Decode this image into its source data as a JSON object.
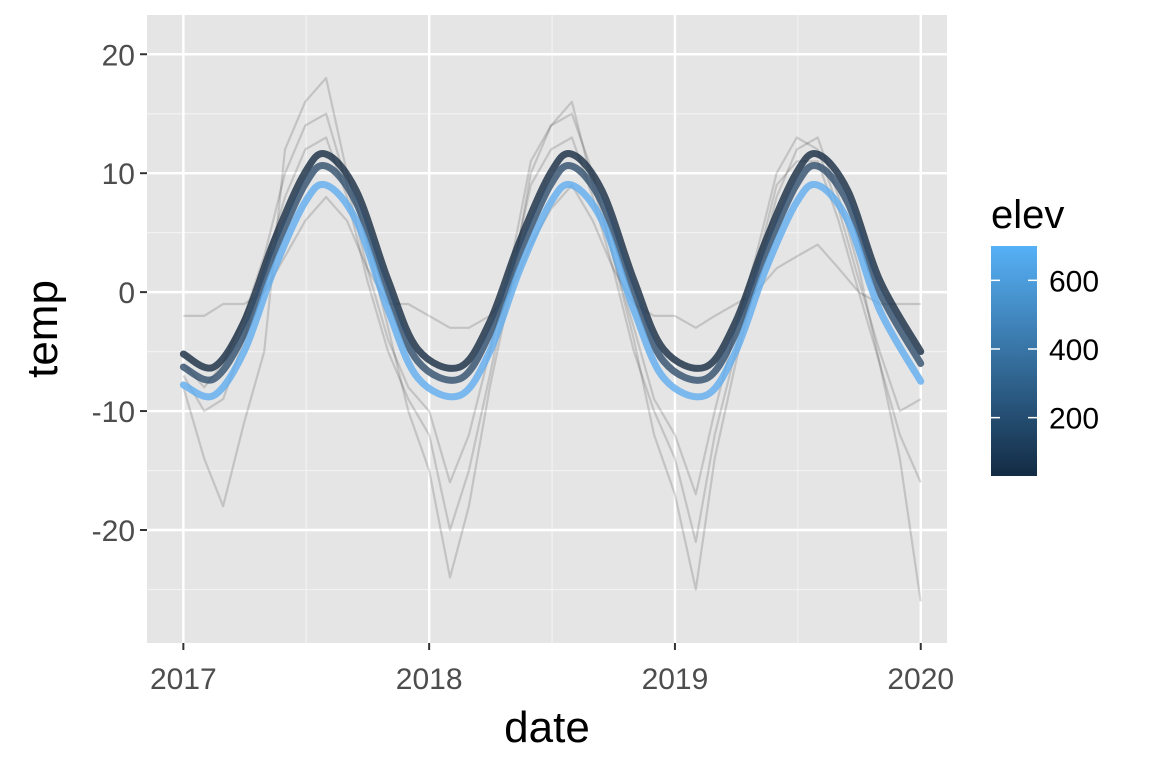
{
  "chart_data": {
    "type": "line",
    "xlabel": "date",
    "ylabel": "temp",
    "x_range": [
      "2016-11-08",
      "2020-02-09"
    ],
    "y_range": [
      -29.5,
      23.3
    ],
    "x_ticks": [
      {
        "date": "2017-01-01",
        "label": "2017"
      },
      {
        "date": "2018-01-01",
        "label": "2018"
      },
      {
        "date": "2019-01-01",
        "label": "2019"
      },
      {
        "date": "2020-01-01",
        "label": "2020"
      }
    ],
    "y_ticks": [
      {
        "value": 20,
        "label": "20"
      },
      {
        "value": 10,
        "label": "10"
      },
      {
        "value": 0,
        "label": "0"
      },
      {
        "value": -10,
        "label": "-10"
      },
      {
        "value": -20,
        "label": "-20"
      }
    ],
    "grid": true,
    "panel_background": "#e5e5e5",
    "legend": {
      "title": "elev",
      "position": "right",
      "type": "colorbar",
      "range": [
        30,
        700
      ],
      "ticks": [
        {
          "value": 600,
          "label": "600"
        },
        {
          "value": 400,
          "label": "400"
        },
        {
          "value": 200,
          "label": "200"
        }
      ],
      "low_color": "#132b43",
      "high_color": "#56b1f7"
    },
    "smooth_series": [
      {
        "elev": 50,
        "color": "#1a2e44",
        "x": [
          "2017-01-01",
          "2017-02-15",
          "2017-04-01",
          "2017-05-15",
          "2017-06-30",
          "2017-08-01",
          "2017-09-15",
          "2017-11-01",
          "2017-12-15",
          "2018-02-15",
          "2018-04-01",
          "2018-05-15",
          "2018-06-30",
          "2018-08-01",
          "2018-09-15",
          "2018-11-01",
          "2018-12-15",
          "2019-02-15",
          "2019-04-01",
          "2019-05-15",
          "2019-06-30",
          "2019-08-01",
          "2019-09-15",
          "2019-11-01",
          "2020-01-01"
        ],
        "y": [
          -5.2,
          -6.3,
          -2.5,
          4.2,
          10.0,
          11.6,
          8.5,
          1.0,
          -4.8,
          -6.3,
          -2.5,
          4.2,
          10.0,
          11.6,
          8.5,
          1.0,
          -4.8,
          -6.3,
          -2.5,
          4.2,
          10.0,
          11.6,
          8.5,
          1.0,
          -5.0
        ]
      },
      {
        "elev": 300,
        "color": "#35506f",
        "x": [
          "2017-01-01",
          "2017-02-15",
          "2017-04-01",
          "2017-05-15",
          "2017-06-30",
          "2017-08-01",
          "2017-09-15",
          "2017-11-01",
          "2017-12-15",
          "2018-02-15",
          "2018-04-01",
          "2018-05-15",
          "2018-06-30",
          "2018-08-01",
          "2018-09-15",
          "2018-11-01",
          "2018-12-15",
          "2019-02-15",
          "2019-04-01",
          "2019-05-15",
          "2019-06-30",
          "2019-08-01",
          "2019-09-15",
          "2019-11-01",
          "2020-01-01"
        ],
        "y": [
          -6.3,
          -7.3,
          -3.5,
          3.2,
          9.0,
          10.6,
          7.5,
          0.0,
          -5.8,
          -7.3,
          -3.5,
          3.2,
          9.0,
          10.6,
          7.5,
          0.0,
          -5.8,
          -7.3,
          -3.5,
          3.2,
          9.0,
          10.6,
          7.5,
          0.0,
          -6.0
        ]
      },
      {
        "elev": 700,
        "color": "#62adee",
        "x": [
          "2017-01-01",
          "2017-02-15",
          "2017-04-01",
          "2017-05-15",
          "2017-06-30",
          "2017-08-01",
          "2017-09-15",
          "2017-11-01",
          "2017-12-15",
          "2018-02-15",
          "2018-04-01",
          "2018-05-15",
          "2018-06-30",
          "2018-08-01",
          "2018-09-15",
          "2018-11-01",
          "2018-12-15",
          "2019-02-15",
          "2019-04-01",
          "2019-05-15",
          "2019-06-30",
          "2019-08-01",
          "2019-09-15",
          "2019-11-01",
          "2020-01-01"
        ],
        "y": [
          -7.8,
          -8.7,
          -5.0,
          1.8,
          7.5,
          9.0,
          6.0,
          -1.5,
          -7.2,
          -8.7,
          -5.0,
          1.8,
          7.5,
          9.0,
          6.0,
          -1.5,
          -7.2,
          -8.7,
          -5.0,
          1.8,
          7.5,
          9.0,
          6.0,
          -1.5,
          -7.5
        ]
      }
    ],
    "raw_series": [
      {
        "x": [
          "2017-01-01",
          "2017-02-01",
          "2017-03-01",
          "2017-04-01",
          "2017-05-01",
          "2017-06-01",
          "2017-07-01",
          "2017-08-01",
          "2017-09-01",
          "2017-10-01",
          "2017-11-01",
          "2017-12-01",
          "2018-01-01",
          "2018-02-01",
          "2018-03-01",
          "2018-04-01",
          "2018-05-01",
          "2018-06-01",
          "2018-07-01",
          "2018-08-01",
          "2018-09-01",
          "2018-10-01",
          "2018-11-01",
          "2018-12-01",
          "2019-01-01",
          "2019-02-01",
          "2019-03-01",
          "2019-04-01",
          "2019-05-01",
          "2019-06-01",
          "2019-07-01",
          "2019-08-01",
          "2019-09-01",
          "2019-10-01",
          "2019-11-01",
          "2019-12-01",
          "2020-01-01"
        ],
        "y": [
          -8,
          -14,
          -18,
          -11,
          -5,
          12,
          16,
          18,
          10,
          4,
          -3,
          -10,
          -15,
          -24,
          -18,
          -8,
          0,
          10,
          14,
          16,
          9,
          3,
          -4,
          -12,
          -17,
          -25,
          -14,
          -6,
          1,
          8,
          12,
          13,
          8,
          2,
          -6,
          -14,
          -26
        ]
      },
      {
        "x": [
          "2017-01-01",
          "2017-02-01",
          "2017-03-01",
          "2017-04-01",
          "2017-05-01",
          "2017-06-01",
          "2017-07-01",
          "2017-08-01",
          "2017-09-01",
          "2017-10-01",
          "2017-11-01",
          "2017-12-01",
          "2018-01-01",
          "2018-02-01",
          "2018-03-01",
          "2018-04-01",
          "2018-05-01",
          "2018-06-01",
          "2018-07-01",
          "2018-08-01",
          "2018-09-01",
          "2018-10-01",
          "2018-11-01",
          "2018-12-01",
          "2019-01-01",
          "2019-02-01",
          "2019-03-01",
          "2019-04-01",
          "2019-05-01",
          "2019-06-01",
          "2019-07-01",
          "2019-08-01",
          "2019-09-01",
          "2019-10-01",
          "2019-11-01",
          "2019-12-01",
          "2020-01-01"
        ],
        "y": [
          -2,
          -2,
          -1,
          -1,
          0,
          3,
          6,
          8,
          6,
          2,
          -1,
          -1,
          -2,
          -3,
          -3,
          -2,
          0,
          4,
          7,
          9,
          6,
          2,
          -1,
          -2,
          -2,
          -3,
          -2,
          -1,
          0,
          2,
          3,
          4,
          2,
          0,
          -1,
          -1,
          -1
        ]
      },
      {
        "x": [
          "2017-01-01",
          "2017-02-01",
          "2017-03-01",
          "2017-04-01",
          "2017-05-01",
          "2017-06-01",
          "2017-07-01",
          "2017-08-01",
          "2017-09-01",
          "2017-10-01",
          "2017-11-01",
          "2017-12-01",
          "2018-01-01",
          "2018-02-01",
          "2018-03-01",
          "2018-04-01",
          "2018-05-01",
          "2018-06-01",
          "2018-07-01",
          "2018-08-01",
          "2018-09-01",
          "2018-10-01",
          "2018-11-01",
          "2018-12-01",
          "2019-01-01",
          "2019-02-01",
          "2019-03-01",
          "2019-04-01",
          "2019-05-01",
          "2019-06-01",
          "2019-07-01",
          "2019-08-01",
          "2019-09-01",
          "2019-10-01",
          "2019-11-01",
          "2019-12-01",
          "2020-01-01"
        ],
        "y": [
          -6,
          -8,
          -6,
          -2,
          3,
          10,
          14,
          15,
          9,
          2,
          -4,
          -8,
          -10,
          -16,
          -12,
          -5,
          2,
          11,
          14,
          15,
          10,
          3,
          -3,
          -9,
          -12,
          -17,
          -10,
          -3,
          3,
          10,
          13,
          12,
          7,
          1,
          -5,
          -10,
          -9
        ]
      },
      {
        "x": [
          "2017-01-01",
          "2017-02-01",
          "2017-03-01",
          "2017-04-01",
          "2017-05-01",
          "2017-06-01",
          "2017-07-01",
          "2017-08-01",
          "2017-09-01",
          "2017-10-01",
          "2017-11-01",
          "2017-12-01",
          "2018-01-01",
          "2018-02-01",
          "2018-03-01",
          "2018-04-01",
          "2018-05-01",
          "2018-06-01",
          "2018-07-01",
          "2018-08-01",
          "2018-09-01",
          "2018-10-01",
          "2018-11-01",
          "2018-12-01",
          "2019-01-01",
          "2019-02-01",
          "2019-03-01",
          "2019-04-01",
          "2019-05-01",
          "2019-06-01",
          "2019-07-01",
          "2019-08-01",
          "2019-09-01",
          "2019-10-01",
          "2019-11-01",
          "2019-12-01",
          "2020-01-01"
        ],
        "y": [
          -7,
          -10,
          -9,
          -4,
          2,
          8,
          12,
          13,
          8,
          1,
          -5,
          -9,
          -12,
          -20,
          -15,
          -7,
          1,
          9,
          12,
          13,
          8,
          2,
          -5,
          -10,
          -14,
          -21,
          -12,
          -5,
          2,
          9,
          11,
          11,
          6,
          0,
          -6,
          -12,
          -16
        ]
      }
    ]
  }
}
